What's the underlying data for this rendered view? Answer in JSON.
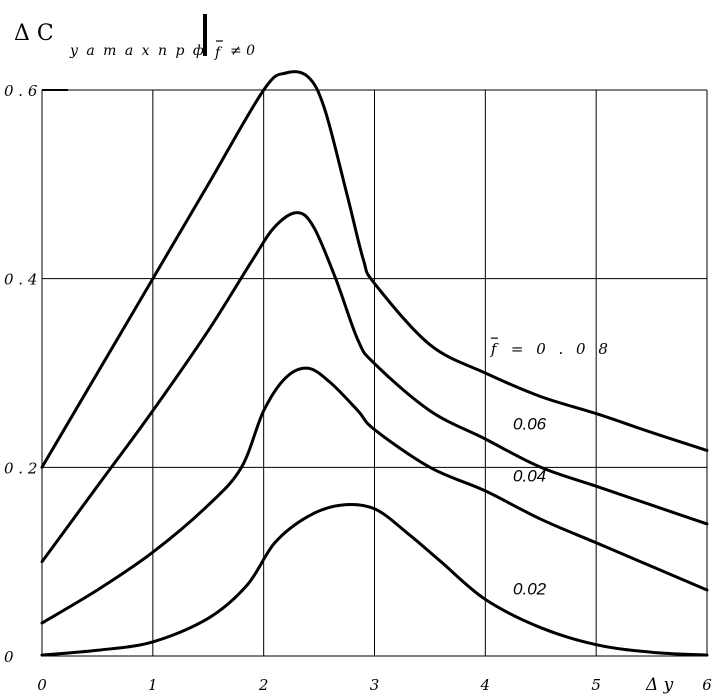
{
  "chart_data": {
    "type": "line",
    "title": "",
    "ylabel": {
      "symbol": "Δ C",
      "subscript": "y a m a x п р ф",
      "condition_var": "f",
      "condition_rel": "≠ 0"
    },
    "xlabel": "Δ y",
    "xlim": [
      0,
      6
    ],
    "ylim": [
      0,
      0.6
    ],
    "x_ticks": [
      {
        "value": 0,
        "label": "0"
      },
      {
        "value": 1,
        "label": "1"
      },
      {
        "value": 2,
        "label": "2"
      },
      {
        "value": 3,
        "label": "3"
      },
      {
        "value": 4,
        "label": "4"
      },
      {
        "value": 5,
        "label": "5"
      },
      {
        "value": 6,
        "label": "6"
      }
    ],
    "y_ticks": [
      {
        "value": 0,
        "label": "0"
      },
      {
        "value": 0.2,
        "label": "0 . 2"
      },
      {
        "value": 0.4,
        "label": "0 . 4"
      },
      {
        "value": 0.6,
        "label": "0 . 6"
      }
    ],
    "grid": true,
    "series": [
      {
        "name": "0.02",
        "label_parts": {
          "var": "",
          "text": "0.02"
        },
        "label_at": [
          4.25,
          0.065
        ],
        "points": [
          [
            0,
            0.001
          ],
          [
            0.5,
            0.006
          ],
          [
            1,
            0.015
          ],
          [
            1.5,
            0.04
          ],
          [
            1.85,
            0.075
          ],
          [
            2.1,
            0.12
          ],
          [
            2.4,
            0.148
          ],
          [
            2.7,
            0.16
          ],
          [
            3,
            0.156
          ],
          [
            3.3,
            0.13
          ],
          [
            3.6,
            0.1
          ],
          [
            4,
            0.06
          ],
          [
            4.5,
            0.03
          ],
          [
            5,
            0.012
          ],
          [
            5.5,
            0.004
          ],
          [
            6,
            0.001
          ]
        ]
      },
      {
        "name": "0.04",
        "label_parts": {
          "var": "",
          "text": "0.04"
        },
        "label_at": [
          4.25,
          0.185
        ],
        "points": [
          [
            0,
            0.035
          ],
          [
            0.5,
            0.07
          ],
          [
            1,
            0.11
          ],
          [
            1.5,
            0.16
          ],
          [
            1.8,
            0.2
          ],
          [
            2,
            0.26
          ],
          [
            2.2,
            0.295
          ],
          [
            2.4,
            0.305
          ],
          [
            2.6,
            0.29
          ],
          [
            2.85,
            0.26
          ],
          [
            3,
            0.24
          ],
          [
            3.5,
            0.2
          ],
          [
            4,
            0.175
          ],
          [
            4.5,
            0.145
          ],
          [
            5,
            0.12
          ],
          [
            5.5,
            0.095
          ],
          [
            6,
            0.07
          ]
        ]
      },
      {
        "name": "0.06",
        "label_parts": {
          "var": "",
          "text": "0.06"
        },
        "label_at": [
          4.25,
          0.24
        ],
        "points": [
          [
            0,
            0.1
          ],
          [
            0.5,
            0.18
          ],
          [
            1,
            0.26
          ],
          [
            1.5,
            0.345
          ],
          [
            1.9,
            0.42
          ],
          [
            2.1,
            0.455
          ],
          [
            2.3,
            0.47
          ],
          [
            2.45,
            0.455
          ],
          [
            2.65,
            0.4
          ],
          [
            2.85,
            0.335
          ],
          [
            3,
            0.31
          ],
          [
            3.5,
            0.26
          ],
          [
            4,
            0.23
          ],
          [
            4.5,
            0.2
          ],
          [
            5,
            0.18
          ],
          [
            5.5,
            0.16
          ],
          [
            6,
            0.14
          ]
        ]
      },
      {
        "name": "f = 0 . 0 8",
        "label_parts": {
          "var": "f",
          "text": "= 0 . 0 8"
        },
        "label_at": [
          4.05,
          0.32
        ],
        "points": [
          [
            0,
            0.2
          ],
          [
            0.5,
            0.3
          ],
          [
            1,
            0.4
          ],
          [
            1.5,
            0.5
          ],
          [
            2,
            0.6
          ],
          [
            2.2,
            0.618
          ],
          [
            2.4,
            0.614
          ],
          [
            2.55,
            0.58
          ],
          [
            2.75,
            0.49
          ],
          [
            2.9,
            0.42
          ],
          [
            3,
            0.395
          ],
          [
            3.5,
            0.33
          ],
          [
            4,
            0.3
          ],
          [
            4.5,
            0.275
          ],
          [
            5,
            0.257
          ],
          [
            5.5,
            0.237
          ],
          [
            6,
            0.218
          ]
        ]
      }
    ]
  }
}
